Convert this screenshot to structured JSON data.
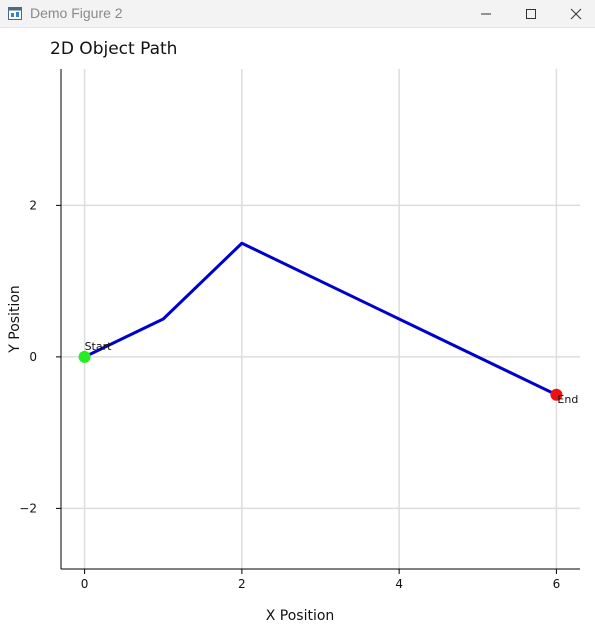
{
  "window": {
    "title": "Demo Figure 2",
    "icon": "app-figure-icon",
    "controls": [
      "minimize-icon",
      "maximize-icon",
      "close-icon"
    ]
  },
  "chart_data": {
    "type": "line",
    "title": "2D Object Path",
    "xlabel": "X Position",
    "ylabel": "Y Position",
    "xlim": [
      -0.3,
      6.3
    ],
    "ylim": [
      -2.8,
      3.8
    ],
    "xticks": [
      0,
      2,
      4,
      6
    ],
    "yticks": [
      -2,
      0,
      2
    ],
    "ytick_labels": [
      "−2",
      "0",
      "2"
    ],
    "grid": true,
    "series": [
      {
        "x": [
          0,
          1,
          2,
          4,
          6
        ],
        "y": [
          0,
          0.5,
          1.5,
          0.5,
          -0.5
        ],
        "color": "#0000cc"
      }
    ],
    "markers": [
      {
        "x": 0,
        "y": 0,
        "color": "#22ee22",
        "label": "Start"
      },
      {
        "x": 6,
        "y": -0.5,
        "color": "#ee1111",
        "label": "End"
      }
    ]
  }
}
